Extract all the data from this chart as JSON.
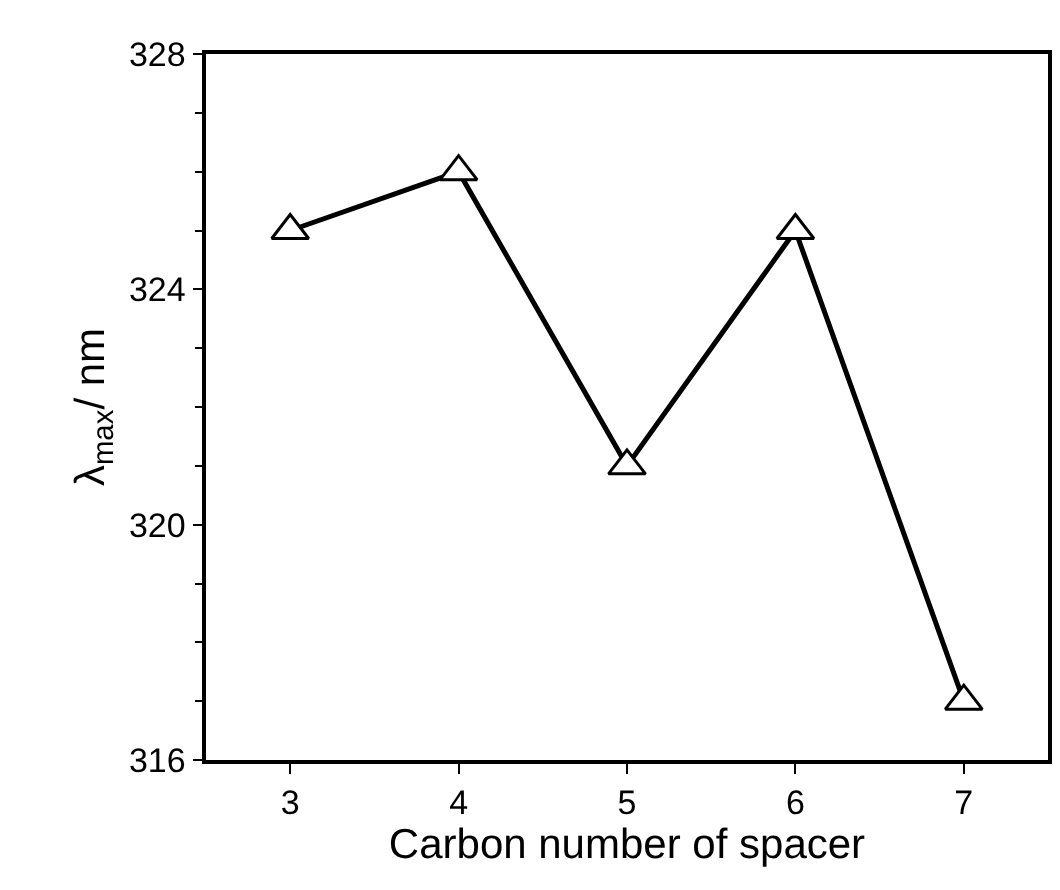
{
  "chart_data": {
    "type": "line",
    "xlabel": "Carbon number of spacer",
    "ylabel": "λ$_{max}$/ nm",
    "x": [
      3,
      4,
      5,
      6,
      7
    ],
    "series": [
      {
        "color": "#000000",
        "values": [
          325,
          326,
          321,
          325,
          317
        ]
      }
    ],
    "xlim": [
      2.5,
      7.5
    ],
    "xticks": [
      3,
      4,
      5,
      6,
      7
    ],
    "ylim": [
      316,
      328
    ],
    "yticks": [
      316,
      320,
      324,
      328
    ],
    "marker": "triangle",
    "line_style": "solid"
  }
}
